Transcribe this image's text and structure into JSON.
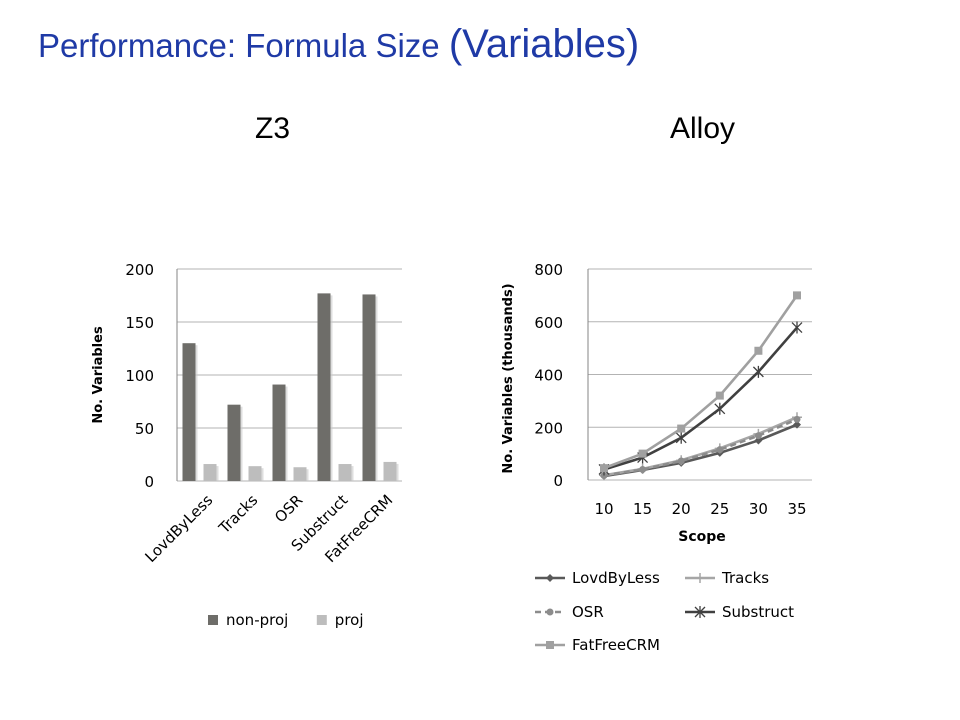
{
  "slide": {
    "title_main": "Performance: Formula Size ",
    "title_paren": "(Variables)"
  },
  "panels": {
    "left_heading": "Z3",
    "right_heading": "Alloy"
  },
  "colors": {
    "title": "#1f3aa6",
    "non_proj": "#6e6d69",
    "proj": "#bdbdbd",
    "line_dark": "#595959",
    "line_light": "#a6a6a6",
    "grid": "#b3b3b3"
  },
  "chart_data": [
    {
      "type": "bar",
      "categories": [
        "LovdByLess",
        "Tracks",
        "OSR",
        "Substruct",
        "FatFreeCRM"
      ],
      "series": [
        {
          "name": "non-proj",
          "values": [
            130,
            72,
            91,
            177,
            176
          ]
        },
        {
          "name": "proj",
          "values": [
            16,
            14,
            13,
            16,
            18
          ]
        }
      ],
      "xlabel": "",
      "ylabel": "No. Variables",
      "ylim": [
        0,
        200
      ],
      "yticks": [
        0,
        50,
        100,
        150,
        200
      ],
      "grid": true,
      "legend": "bottom"
    },
    {
      "type": "line",
      "x": [
        10,
        15,
        20,
        25,
        30,
        35
      ],
      "series": [
        {
          "name": "LovdByLess",
          "values": [
            15,
            38,
            65,
            103,
            150,
            210
          ],
          "marker": "diamond",
          "style": "solid",
          "color": "#595959"
        },
        {
          "name": "Tracks",
          "values": [
            18,
            42,
            75,
            120,
            175,
            238
          ],
          "marker": "plus",
          "style": "solid",
          "color": "#a6a6a6"
        },
        {
          "name": "OSR",
          "values": [
            17,
            40,
            72,
            115,
            168,
            230
          ],
          "marker": "circle",
          "style": "dashed",
          "color": "#8c8c8c"
        },
        {
          "name": "Substruct",
          "values": [
            40,
            85,
            160,
            270,
            410,
            578
          ],
          "marker": "star",
          "style": "solid",
          "color": "#404040"
        },
        {
          "name": "FatFreeCRM",
          "values": [
            45,
            100,
            195,
            320,
            490,
            700
          ],
          "marker": "square",
          "style": "solid",
          "color": "#a0a0a0"
        }
      ],
      "xlabel": "Scope",
      "ylabel": "No. Variables (thousands)",
      "ylim": [
        0,
        800
      ],
      "yticks": [
        0,
        200,
        400,
        600,
        800
      ],
      "grid": true,
      "legend": "bottom"
    }
  ]
}
